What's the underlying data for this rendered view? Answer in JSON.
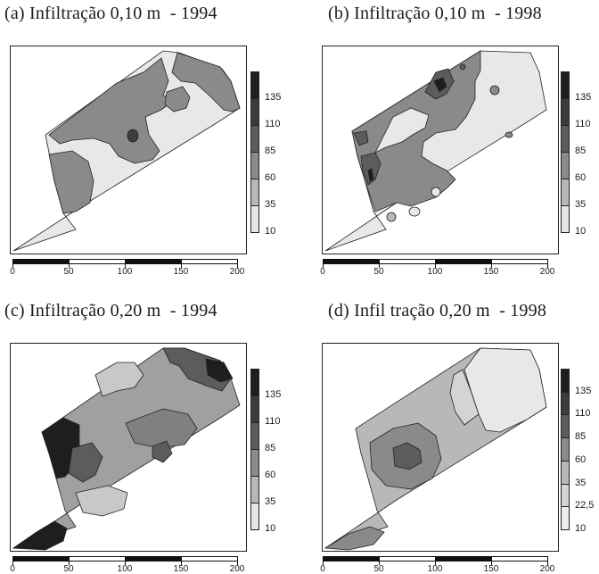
{
  "panels": [
    {
      "id": "a",
      "title": "(a) Infiltração 0,10 m  - 1994",
      "legend_labels": [
        "135",
        "110",
        "85",
        "60",
        "35",
        "10"
      ],
      "legend_colors": [
        "#1e1e1e",
        "#3c3c3c",
        "#5c5c5c",
        "#8a8a8a",
        "#b8b8b8",
        "#e6e6e6"
      ],
      "scale_labels": [
        "0",
        "50",
        "100",
        "150",
        "200"
      ]
    },
    {
      "id": "b",
      "title": "(b) Infiltração 0,10 m  - 1998",
      "legend_labels": [
        "135",
        "110",
        "85",
        "60",
        "35",
        "10"
      ],
      "legend_colors": [
        "#1e1e1e",
        "#3c3c3c",
        "#5c5c5c",
        "#8a8a8a",
        "#b8b8b8",
        "#e6e6e6"
      ],
      "scale_labels": [
        "0",
        "50",
        "100",
        "150",
        "200"
      ]
    },
    {
      "id": "c",
      "title": "(c) Infiltração 0,20 m  - 1994",
      "legend_labels": [
        "135",
        "110",
        "85",
        "60",
        "35",
        "10"
      ],
      "legend_colors": [
        "#1e1e1e",
        "#3c3c3c",
        "#5c5c5c",
        "#8a8a8a",
        "#b8b8b8",
        "#e6e6e6"
      ],
      "scale_labels": [
        "0",
        "50",
        "100",
        "150",
        "200"
      ]
    },
    {
      "id": "d",
      "title": "(d) Infil tração 0,20 m  - 1998",
      "legend_labels": [
        "135",
        "110",
        "85",
        "60",
        "35",
        "22,5",
        "10"
      ],
      "legend_colors": [
        "#1e1e1e",
        "#3c3c3c",
        "#5c5c5c",
        "#8a8a8a",
        "#b8b8b8",
        "#d4d4d4",
        "#ececec"
      ],
      "scale_labels": [
        "0",
        "50",
        "100",
        "150",
        "200"
      ]
    }
  ],
  "colors": {
    "frame": "#222222",
    "zone_very_light": "#e8e8e8",
    "zone_light": "#c8c8c8",
    "zone_mid": "#a0a0a0",
    "zone_mid_dark": "#808080",
    "zone_dark": "#5a5a5a",
    "zone_black": "#1c1c1c"
  }
}
